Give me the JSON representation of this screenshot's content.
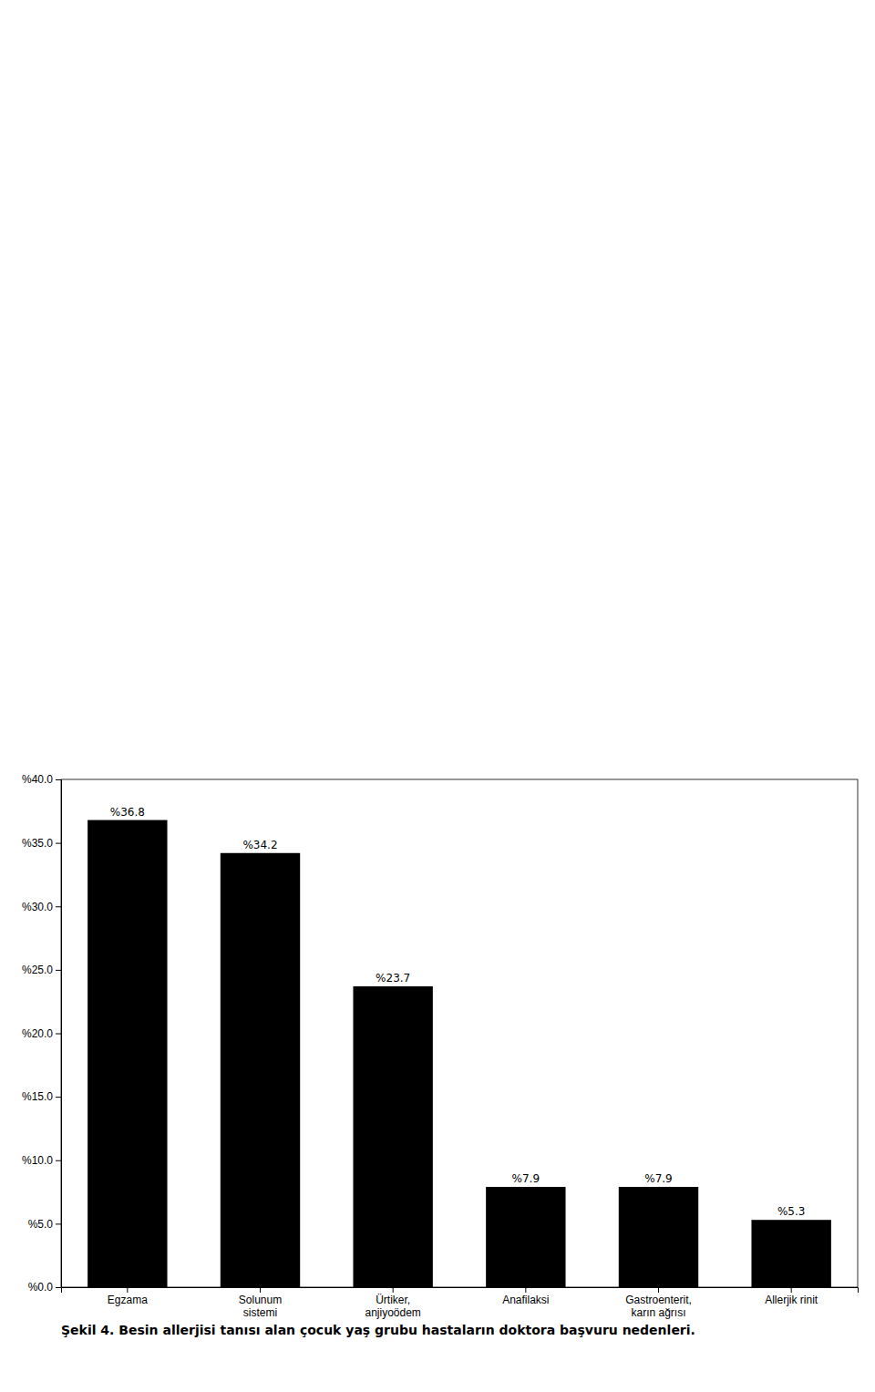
{
  "chart_data": {
    "type": "bar",
    "title": "Şekil 4. Besin allerjisi tanısı alan çocuk yaş grubu hastaların doktora başvuru nedenleri.",
    "categories": [
      "Egzama",
      "Solunum\nsistemi",
      "Ürtiker,\nanjiyoödem",
      "Anafilaksi",
      "Gastroenterit,\nkarın ağrısı",
      "Allerjik rinit"
    ],
    "values": [
      36.8,
      34.2,
      23.7,
      7.9,
      7.9,
      5.3
    ],
    "value_labels": [
      "%36.8",
      "%34.2",
      "%23.7",
      "%7.9",
      "%7.9",
      "%5.3"
    ],
    "data_labels": true,
    "color": "#000000",
    "ylim": [
      0,
      40
    ],
    "yticks": [
      {
        "value": 0.0,
        "label": "%0.0"
      },
      {
        "value": 5.0,
        "label": "%5.0"
      },
      {
        "value": 10.0,
        "label": "%10.0"
      },
      {
        "value": 15.0,
        "label": "%15.0"
      },
      {
        "value": 20.0,
        "label": "%20.0"
      },
      {
        "value": 25.0,
        "label": "%25.0"
      },
      {
        "value": 30.0,
        "label": "%30.0"
      },
      {
        "value": 35.0,
        "label": "%35.0"
      },
      {
        "value": 40.0,
        "label": "%40.0"
      }
    ],
    "grid": false
  }
}
